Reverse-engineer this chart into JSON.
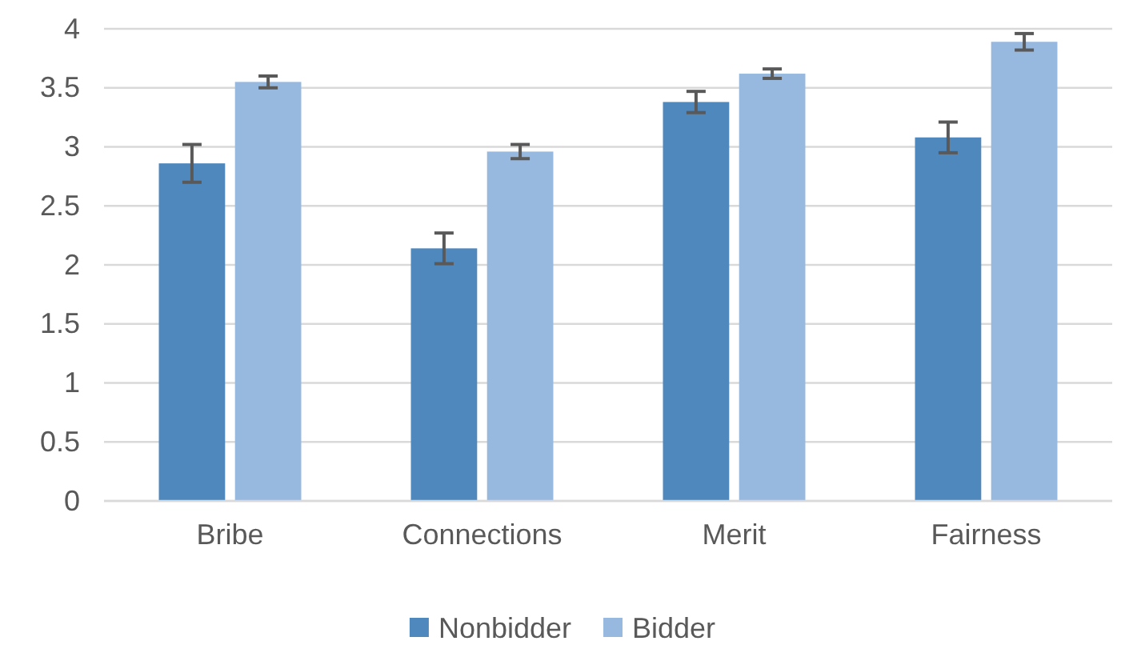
{
  "chart_data": {
    "type": "bar",
    "categories": [
      "Bribe",
      "Connections",
      "Merit",
      "Fairness"
    ],
    "series": [
      {
        "name": "Nonbidder",
        "color": "#4f88bd",
        "values": [
          2.86,
          2.14,
          3.38,
          3.08
        ],
        "errors": [
          0.16,
          0.13,
          0.09,
          0.13
        ]
      },
      {
        "name": "Bidder",
        "color": "#98b9df",
        "values": [
          3.55,
          2.96,
          3.62,
          3.89
        ],
        "errors": [
          0.05,
          0.06,
          0.04,
          0.07
        ]
      }
    ],
    "ylim": [
      0,
      4
    ],
    "yticks": [
      0,
      0.5,
      1,
      1.5,
      2,
      2.5,
      3,
      3.5,
      4
    ],
    "grid": "y",
    "legend": "bottom"
  }
}
